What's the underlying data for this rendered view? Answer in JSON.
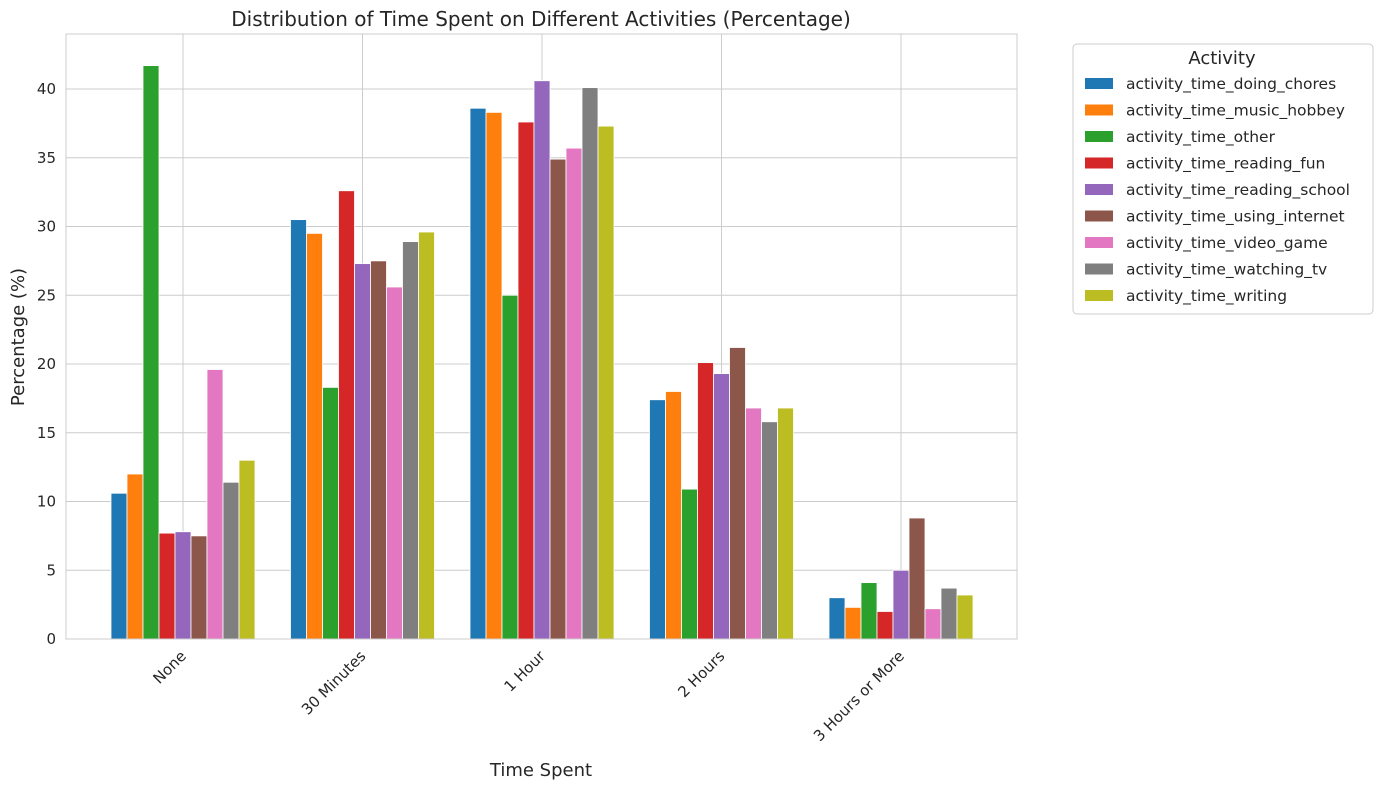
{
  "chart_data": {
    "type": "bar",
    "title": "Distribution of Time Spent on Different Activities (Percentage)",
    "xlabel": "Time Spent",
    "ylabel": "Percentage (%)",
    "ylim": [
      0,
      44
    ],
    "yticks": [
      0,
      5,
      10,
      15,
      20,
      25,
      30,
      35,
      40
    ],
    "grid": true,
    "legend_title": "Activity",
    "legend_position": "outside-top-right",
    "categories": [
      "None",
      "30 Minutes",
      "1 Hour",
      "2 Hours",
      "3 Hours or More"
    ],
    "series": [
      {
        "name": "activity_time_doing_chores",
        "color": "#1f77b4",
        "values": [
          10.6,
          30.5,
          38.6,
          17.4,
          3.0
        ]
      },
      {
        "name": "activity_time_music_hobbey",
        "color": "#ff7f0e",
        "values": [
          12.0,
          29.5,
          38.3,
          18.0,
          2.3
        ]
      },
      {
        "name": "activity_time_other",
        "color": "#2ca02c",
        "values": [
          41.7,
          18.3,
          25.0,
          10.9,
          4.1
        ]
      },
      {
        "name": "activity_time_reading_fun",
        "color": "#d62728",
        "values": [
          7.7,
          32.6,
          37.6,
          20.1,
          2.0
        ]
      },
      {
        "name": "activity_time_reading_school",
        "color": "#9467bd",
        "values": [
          7.8,
          27.3,
          40.6,
          19.3,
          5.0
        ]
      },
      {
        "name": "activity_time_using_internet",
        "color": "#8c564b",
        "values": [
          7.5,
          27.5,
          34.9,
          21.2,
          8.8
        ]
      },
      {
        "name": "activity_time_video_game",
        "color": "#e377c2",
        "values": [
          19.6,
          25.6,
          35.7,
          16.8,
          2.2
        ]
      },
      {
        "name": "activity_time_watching_tv",
        "color": "#7f7f7f",
        "values": [
          11.4,
          28.9,
          40.1,
          15.8,
          3.7
        ]
      },
      {
        "name": "activity_time_writing",
        "color": "#bcbd22",
        "values": [
          13.0,
          29.6,
          37.3,
          16.8,
          3.2
        ]
      }
    ]
  }
}
